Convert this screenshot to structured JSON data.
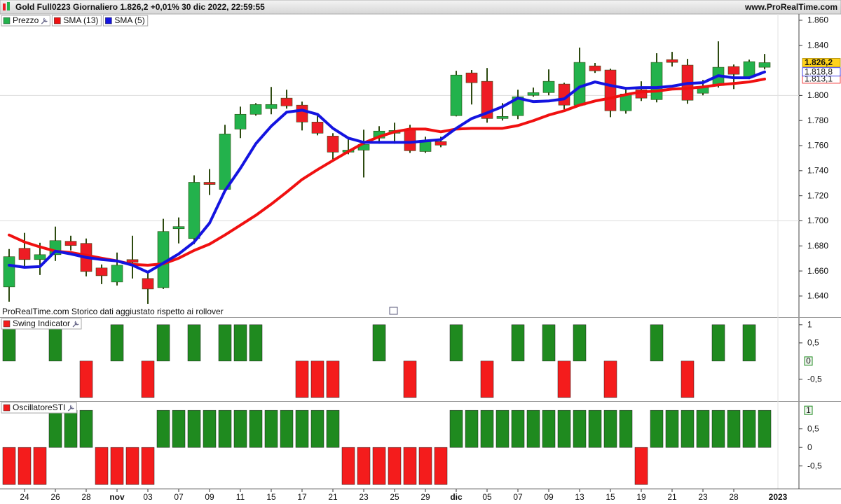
{
  "header": {
    "title": "Gold Full0223 Giornaliero 1.826,2 +0,01% 30 dic 2022, 22:59:55",
    "site": "www.ProRealTime.com"
  },
  "chart_data": [
    {
      "type": "candlestick",
      "note": "ProRealTime.com Storico dati aggiustato rispetto ai rollover",
      "ylim": [
        1623.2,
        1865.0
      ],
      "yticks": [
        {
          "value": 1860,
          "label": "1.860"
        },
        {
          "value": 1840,
          "label": "1.840"
        },
        {
          "value": 1800,
          "label": "1.800"
        },
        {
          "value": 1780,
          "label": "1.780"
        },
        {
          "value": 1760,
          "label": "1.760"
        },
        {
          "value": 1740,
          "label": "1.740"
        },
        {
          "value": 1720,
          "label": "1.720"
        },
        {
          "value": 1700,
          "label": "1.700"
        },
        {
          "value": 1680,
          "label": "1.680"
        },
        {
          "value": 1660,
          "label": "1.660"
        },
        {
          "value": 1640,
          "label": "1.640"
        }
      ],
      "grid_lines": [
        1800,
        1700
      ],
      "series": [
        {
          "name": "Prezzo",
          "up_color": "#23b24c",
          "down_color": "#ee1c24",
          "wick_color": "#2d4a10",
          "last_label": "1.826,2",
          "label_color": "#ffd21a",
          "open": [
            1647.3,
            1678.1,
            1669.1,
            1673.0,
            1683.7,
            1682.0,
            1662.4,
            1651.2,
            1669.1,
            1654.0,
            1646.7,
            1693.7,
            1685.9,
            1730.7,
            1725.1,
            1773.2,
            1785.0,
            1789.5,
            1797.9,
            1792.3,
            1778.8,
            1767.6,
            1754.8,
            1756.4,
            1766.0,
            1769.9,
            1773.2,
            1755.3,
            1763.2,
            1783.9,
            1818.0,
            1811.3,
            1781.6,
            1783.9,
            1800.1,
            1802.3,
            1809.1,
            1792.3,
            1823.6,
            1820.3,
            1787.8,
            1804.6,
            1796.7,
            1828.6,
            1824.2,
            1801.8,
            1807.9,
            1823.1,
            1814.7,
            1822.5
          ],
          "high": [
            1677.5,
            1690.4,
            1682.5,
            1695.4,
            1688.1,
            1685.9,
            1665.2,
            1674.7,
            1688.1,
            1659.0,
            1701.6,
            1702.7,
            1736.3,
            1741.3,
            1776.6,
            1791.1,
            1793.9,
            1806.8,
            1804.6,
            1795.1,
            1783.9,
            1769.9,
            1767.1,
            1772.7,
            1775.5,
            1778.3,
            1776.6,
            1767.1,
            1767.1,
            1819.7,
            1820.3,
            1821.9,
            1793.9,
            1804.6,
            1806.3,
            1820.8,
            1810.2,
            1838.2,
            1825.9,
            1821.4,
            1806.8,
            1811.3,
            1833.7,
            1834.8,
            1829.2,
            1812.4,
            1843.2,
            1824.7,
            1828.6,
            1833.1
          ],
          "low": [
            1635.5,
            1663.5,
            1656.8,
            1668.0,
            1676.4,
            1655.7,
            1649.5,
            1648.4,
            1654.0,
            1633.8,
            1645.6,
            1682.0,
            1681.4,
            1720.6,
            1724.5,
            1766.0,
            1783.9,
            1785.0,
            1789.5,
            1772.1,
            1768.2,
            1749.2,
            1753.1,
            1734.6,
            1761.5,
            1761.5,
            1754.2,
            1754.2,
            1758.7,
            1783.3,
            1792.8,
            1778.3,
            1780.0,
            1781.1,
            1799.0,
            1800.1,
            1788.9,
            1791.7,
            1818.0,
            1782.7,
            1785.5,
            1795.6,
            1794.5,
            1823.1,
            1793.4,
            1800.1,
            1806.3,
            1805.1,
            1813.0,
            1820.8
          ],
          "close": [
            1671.4,
            1669.1,
            1673.0,
            1684.2,
            1680.3,
            1659.6,
            1656.2,
            1664.6,
            1666.9,
            1645.6,
            1691.5,
            1695.4,
            1730.7,
            1729.0,
            1769.3,
            1785.0,
            1792.8,
            1792.8,
            1791.7,
            1778.8,
            1769.9,
            1754.8,
            1756.4,
            1760.9,
            1771.6,
            1772.1,
            1755.9,
            1764.3,
            1760.4,
            1816.3,
            1810.2,
            1781.6,
            1783.3,
            1799.0,
            1802.3,
            1811.3,
            1792.3,
            1826.4,
            1819.7,
            1787.8,
            1801.2,
            1797.9,
            1826.4,
            1826.4,
            1796.2,
            1806.3,
            1822.5,
            1816.9,
            1827.0,
            1826.2
          ]
        },
        {
          "name": "SMA (13)",
          "color": "#f01010",
          "last_label": "1.813,1",
          "values": [
            1688.7,
            1683.1,
            1679.2,
            1675.8,
            1674.7,
            1672.5,
            1670.2,
            1668.0,
            1665.2,
            1664.6,
            1665.7,
            1670.2,
            1676.4,
            1681.4,
            1688.7,
            1696.5,
            1704.4,
            1713.3,
            1722.9,
            1733.0,
            1740.8,
            1748.1,
            1755.3,
            1762.1,
            1767.1,
            1771.0,
            1773.2,
            1773.2,
            1771.0,
            1773.2,
            1773.8,
            1773.8,
            1773.8,
            1776.0,
            1779.9,
            1784.4,
            1787.8,
            1792.3,
            1795.6,
            1797.9,
            1800.7,
            1802.9,
            1803.5,
            1805.1,
            1805.7,
            1806.8,
            1808.5,
            1809.6,
            1810.8,
            1813.1
          ]
        },
        {
          "name": "SMA (5)",
          "color": "#1414e0",
          "last_label": "1.818,8",
          "values": [
            1664.6,
            1662.9,
            1663.5,
            1675.8,
            1673.6,
            1670.8,
            1669.1,
            1668.0,
            1664.6,
            1659.0,
            1666.3,
            1673.6,
            1683.1,
            1698.2,
            1724.0,
            1741.9,
            1761.5,
            1775.5,
            1786.7,
            1788.3,
            1785.0,
            1773.8,
            1766.0,
            1762.6,
            1762.6,
            1762.6,
            1762.6,
            1763.7,
            1764.8,
            1773.8,
            1781.6,
            1786.1,
            1791.1,
            1797.9,
            1795.1,
            1795.6,
            1797.3,
            1806.8,
            1810.8,
            1808.0,
            1805.7,
            1806.3,
            1806.3,
            1807.4,
            1809.6,
            1810.2,
            1815.8,
            1814.1,
            1814.1,
            1818.8
          ]
        }
      ]
    },
    {
      "type": "bar",
      "title": "Swing Indicator",
      "up_color": "#1f8a1f",
      "down_color": "#f41c1c",
      "ylim": [
        -1.1,
        1.19
      ],
      "yticks": [
        1,
        {
          "value": 0.5,
          "label": "0,5"
        },
        {
          "value": -0.5,
          "label": "-0,5"
        }
      ],
      "values": [
        1,
        0,
        0,
        1,
        0,
        -1,
        0,
        1,
        0,
        -1,
        1,
        0,
        1,
        0,
        1,
        1,
        1,
        0,
        0,
        -1,
        -1,
        -1,
        0,
        0,
        1,
        0,
        -1,
        0,
        0,
        1,
        0,
        -1,
        0,
        1,
        0,
        1,
        -1,
        1,
        0,
        -1,
        0,
        0,
        1,
        0,
        -1,
        0,
        1,
        0,
        1,
        0
      ]
    },
    {
      "type": "bar",
      "title": "OscillatoreSTI",
      "up_color": "#1f8a1f",
      "down_color": "#f41c1c",
      "ylim": [
        -1.11,
        1.23
      ],
      "yticks": [
        {
          "value": 0.5,
          "label": "0,5"
        },
        0,
        {
          "value": -0.5,
          "label": "-0,5"
        }
      ],
      "values": [
        -1,
        -1,
        -1,
        1,
        1,
        1,
        -1,
        -1,
        -1,
        -1,
        1,
        1,
        1,
        1,
        1,
        1,
        1,
        1,
        1,
        1,
        1,
        1,
        -1,
        -1,
        -1,
        -1,
        -1,
        -1,
        -1,
        1,
        1,
        1,
        1,
        1,
        1,
        1,
        1,
        1,
        1,
        1,
        1,
        -1,
        1,
        1,
        1,
        1,
        1,
        1,
        1,
        1
      ],
      "categories": [
        null,
        "24",
        null,
        "26",
        null,
        "28",
        null,
        "nov",
        null,
        "03",
        null,
        "07",
        null,
        "09",
        null,
        "11",
        null,
        "15",
        null,
        "17",
        null,
        "21",
        null,
        "23",
        null,
        "25",
        null,
        "29",
        null,
        "dic",
        null,
        "05",
        null,
        "07",
        null,
        "09",
        null,
        "13",
        null,
        "15",
        null,
        "19",
        null,
        "21",
        null,
        "23",
        null,
        "28",
        null,
        null
      ],
      "x_end_label": "2023"
    }
  ]
}
